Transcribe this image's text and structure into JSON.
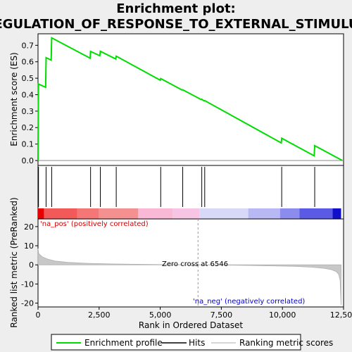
{
  "chart_data": {
    "type": "line",
    "title_line1": "Enrichment plot:",
    "title_line2": "REGULATION_OF_RESPONSE_TO_EXTERNAL_STIMULUS",
    "es_panel": {
      "ylabel": "Enrichment score (ES)",
      "xlim": [
        0,
        12500
      ],
      "ylim": [
        -0.03,
        0.77
      ],
      "yticks": [
        0.0,
        0.1,
        0.2,
        0.3,
        0.4,
        0.5,
        0.6,
        0.7
      ],
      "ytick_labels": [
        "0.0",
        "0.1",
        "0.2",
        "0.3",
        "0.4",
        "0.5",
        "0.6",
        "0.7"
      ],
      "line_color": "#00dd00",
      "points": [
        [
          0,
          0.0
        ],
        [
          20,
          0.465
        ],
        [
          310,
          0.445
        ],
        [
          330,
          0.625
        ],
        [
          540,
          0.61
        ],
        [
          560,
          0.745
        ],
        [
          2130,
          0.622
        ],
        [
          2150,
          0.663
        ],
        [
          2530,
          0.637
        ],
        [
          2550,
          0.664
        ],
        [
          3180,
          0.617
        ],
        [
          3200,
          0.634
        ],
        [
          5000,
          0.488
        ],
        [
          5020,
          0.498
        ],
        [
          5900,
          0.428
        ],
        [
          5920,
          0.43
        ],
        [
          6680,
          0.37
        ],
        [
          6700,
          0.372
        ],
        [
          6800,
          0.362
        ],
        [
          6820,
          0.364
        ],
        [
          9950,
          0.107
        ],
        [
          9970,
          0.135
        ],
        [
          11300,
          0.028
        ],
        [
          11320,
          0.09
        ],
        [
          12450,
          0.0
        ]
      ]
    },
    "hits": [
      20,
      330,
      560,
      2150,
      2550,
      3200,
      5020,
      5920,
      6700,
      6820,
      9970,
      11320
    ],
    "ranking_bar": {
      "segments": [
        {
          "from": 0,
          "to": 250,
          "color": "#e80000"
        },
        {
          "from": 250,
          "to": 1600,
          "color": "#f25a5a"
        },
        {
          "from": 1600,
          "to": 2500,
          "color": "#f47676"
        },
        {
          "from": 2500,
          "to": 4100,
          "color": "#f49090"
        },
        {
          "from": 4100,
          "to": 5500,
          "color": "#f8b8d6"
        },
        {
          "from": 5500,
          "to": 6600,
          "color": "#f8c4e4"
        },
        {
          "from": 6600,
          "to": 8600,
          "color": "#d8d8f8"
        },
        {
          "from": 8600,
          "to": 9900,
          "color": "#b8b8f4"
        },
        {
          "from": 9900,
          "to": 10700,
          "color": "#8c8cee"
        },
        {
          "from": 10700,
          "to": 12050,
          "color": "#5a5ae4"
        },
        {
          "from": 12050,
          "to": 12400,
          "color": "#1010cc"
        }
      ]
    },
    "metric_panel": {
      "ylabel": "Ranked list metric (PreRanked)",
      "xlabel": "Rank in Ordered Dataset",
      "xlim": [
        0,
        12500
      ],
      "ylim": [
        -22,
        24
      ],
      "yticks": [
        20,
        10,
        0,
        -10,
        -20
      ],
      "ytick_labels": [
        "20",
        "10",
        "0",
        "-10",
        "-20"
      ],
      "xticks": [
        0,
        2500,
        5000,
        7500,
        10000,
        12500
      ],
      "xtick_labels": [
        "0",
        "2,500",
        "5,000",
        "7,500",
        "10,000",
        "12,500"
      ],
      "zero_cross": 6546,
      "zero_cross_label": "Zero cross at 6546",
      "pos_label": "'na_pos' (positively correlated)",
      "neg_label": "'na_neg' (negatively correlated)",
      "metric_curve": [
        [
          0,
          8.5
        ],
        [
          30,
          6.0
        ],
        [
          100,
          5.0
        ],
        [
          200,
          4.0
        ],
        [
          400,
          3.0
        ],
        [
          700,
          2.0
        ],
        [
          1200,
          1.3
        ],
        [
          2000,
          0.8
        ],
        [
          3000,
          0.5
        ],
        [
          4000,
          0.3
        ],
        [
          5000,
          0.15
        ],
        [
          6000,
          0.05
        ],
        [
          6546,
          0.0
        ],
        [
          7500,
          -0.1
        ],
        [
          8500,
          -0.3
        ],
        [
          9500,
          -0.5
        ],
        [
          10500,
          -0.8
        ],
        [
          11200,
          -1.2
        ],
        [
          11700,
          -1.8
        ],
        [
          12000,
          -2.5
        ],
        [
          12200,
          -3.5
        ],
        [
          12300,
          -5.0
        ],
        [
          12360,
          -8.0
        ],
        [
          12400,
          -21.0
        ]
      ],
      "fill_color": "#c8c8c8"
    },
    "legend": [
      {
        "label": "Enrichment profile",
        "color": "#00dd00",
        "kind": "line"
      },
      {
        "label": "Hits",
        "color": "#000000",
        "kind": "line"
      },
      {
        "label": "Ranking metric scores",
        "color": "#c8c8c8",
        "kind": "line"
      }
    ]
  }
}
